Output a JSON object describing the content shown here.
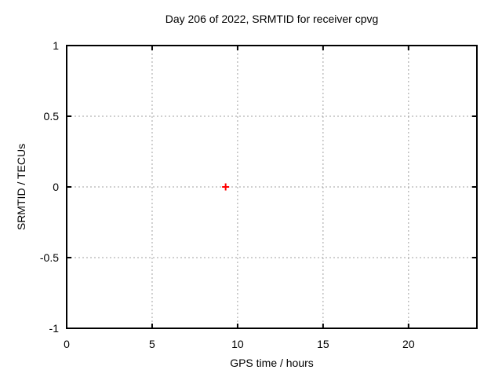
{
  "chart_data": {
    "type": "scatter",
    "title": "Day 206 of 2022, SRMTID for receiver cpvg",
    "xlabel": "GPS time / hours",
    "ylabel": "SRMTID / TECUs",
    "xlim": [
      0,
      24
    ],
    "ylim": [
      -1,
      1
    ],
    "xticks": [
      0,
      5,
      10,
      15,
      20
    ],
    "xtick_labels": [
      "0",
      "5",
      "10",
      "15",
      "20"
    ],
    "yticks": [
      -1,
      -0.5,
      0,
      0.5,
      1
    ],
    "ytick_labels": [
      "-1",
      "-0.5",
      "0",
      "0.5",
      "1"
    ],
    "grid": true,
    "legend": false,
    "series": [
      {
        "name": "SRMTID",
        "marker": "plus",
        "color": "#ff0000",
        "points": [
          {
            "x": 9.3,
            "y": 0.0
          }
        ]
      }
    ],
    "colors": {
      "background": "#ffffff",
      "border": "#000000",
      "grid": "#a0a0a0",
      "text": "#000000"
    }
  }
}
